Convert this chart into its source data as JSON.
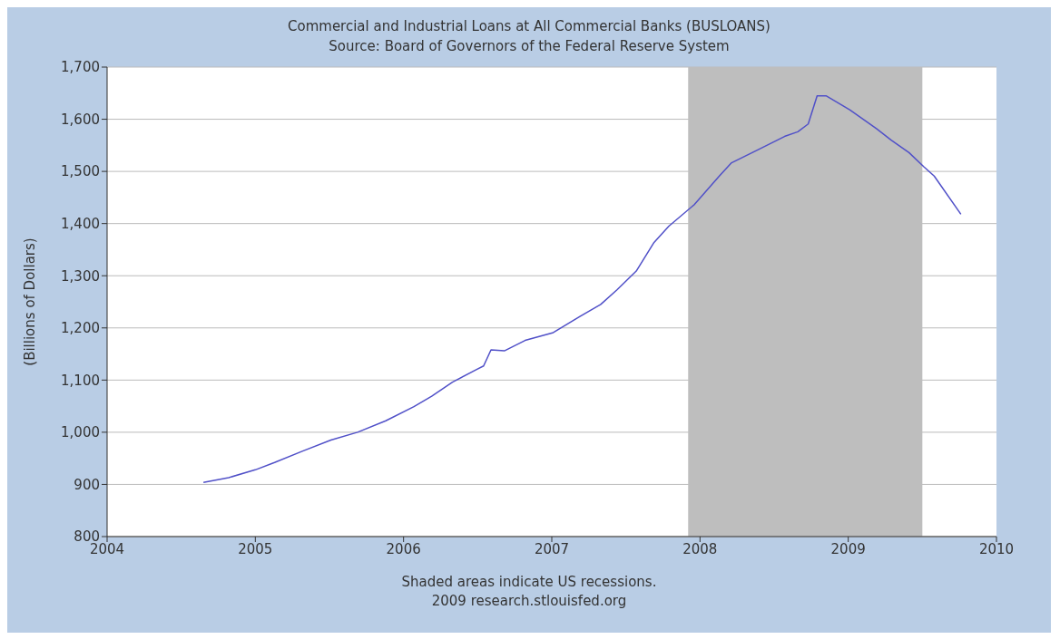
{
  "chart_data": {
    "type": "line",
    "title": "Commercial and Industrial Loans at All Commercial Banks (BUSLOANS)",
    "subtitle": "Source: Board of Governors of the Federal Reserve System",
    "ylabel": "(Billions of Dollars)",
    "annotations": [
      "Shaded areas indicate US recessions.",
      "2009 research.stlouisfed.org"
    ],
    "x": [
      2004.65,
      2004.82,
      2005.0,
      2005.13,
      2005.32,
      2005.51,
      2005.69,
      2005.88,
      2006.07,
      2006.19,
      2006.33,
      2006.49,
      2006.54,
      2006.59,
      2006.68,
      2006.82,
      2007.01,
      2007.19,
      2007.33,
      2007.44,
      2007.57,
      2007.69,
      2007.79,
      2007.96,
      2008.13,
      2008.21,
      2008.38,
      2008.57,
      2008.66,
      2008.73,
      2008.79,
      2008.85,
      2009.01,
      2009.19,
      2009.29,
      2009.41,
      2009.51,
      2009.58,
      2009.76
    ],
    "series": [
      {
        "color": "#5050c8",
        "values": [
          904,
          913,
          928,
          942,
          964,
          985,
          1000,
          1022,
          1049,
          1069,
          1096,
          1120,
          1127,
          1158,
          1156,
          1176,
          1191,
          1222,
          1245,
          1273,
          1309,
          1364,
          1395,
          1436,
          1491,
          1516,
          1540,
          1567,
          1576,
          1591,
          1645,
          1645,
          1618,
          1582,
          1560,
          1536,
          1509,
          1491,
          1418
        ]
      }
    ],
    "xlim": [
      2004,
      2010
    ],
    "xticks": [
      2004,
      2005,
      2006,
      2007,
      2008,
      2009,
      2010
    ],
    "ylim": [
      800,
      1700
    ],
    "yticks": [
      800,
      900,
      {
        "value": 1000,
        "label": "1,000"
      },
      {
        "value": 1100,
        "label": "1,100"
      },
      {
        "value": 1200,
        "label": "1,200"
      },
      {
        "value": 1300,
        "label": "1,300"
      },
      {
        "value": 1400,
        "label": "1,400"
      },
      {
        "value": 1500,
        "label": "1,500"
      },
      {
        "value": 1600,
        "label": "1,600"
      },
      {
        "value": 1700,
        "label": "1,700"
      }
    ],
    "grid": "y",
    "legend": false,
    "marker": "none",
    "line_style": "solid",
    "bands": [
      {
        "axis": "x",
        "from": 2007.92,
        "to": 2009.5,
        "color": "#bebebe"
      }
    ]
  }
}
